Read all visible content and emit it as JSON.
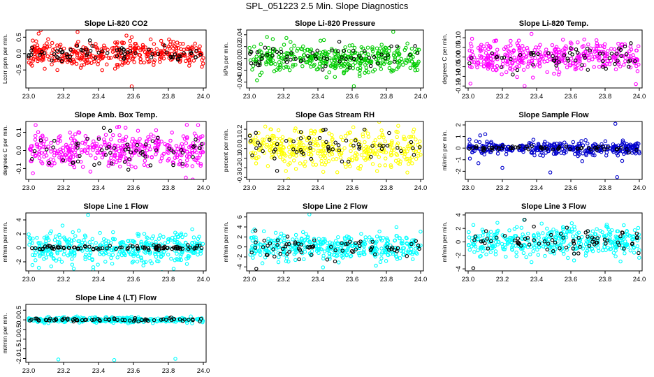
{
  "figure_title": "SPL_051223  2.5 Min. Slope Diagnostics",
  "chart_data": [
    {
      "type": "scatter",
      "title": "Slope Li-820 CO2",
      "ylabel": "Lcorr ppm per min.",
      "xlim": [
        23.0,
        24.0
      ],
      "ylim": [
        -1.05,
        0.72
      ],
      "xticks": [
        23.0,
        23.2,
        23.4,
        23.6,
        23.8,
        24.0
      ],
      "xtick_labels": [
        "23.0",
        "23.2",
        "23.4",
        "23.6",
        "23.8",
        "24.0"
      ],
      "yticks": [
        -0.5,
        0.0,
        0.5
      ],
      "ytick_labels": [
        "-0.5",
        "0.0",
        "0.5"
      ],
      "series": [
        {
          "name": "primary",
          "color": "#ff0000",
          "spread": 0.2,
          "n": 380,
          "seed": 11,
          "outliers": [
            [
              23.28,
              0.66
            ],
            [
              23.56,
              0.55
            ],
            [
              23.59,
              0.5
            ],
            [
              23.55,
              -0.28
            ],
            [
              23.59,
              -1.0
            ]
          ]
        },
        {
          "name": "reference",
          "color": "#000000",
          "spread": 0.12,
          "n": 70,
          "seed": 12,
          "outliers": []
        }
      ]
    },
    {
      "type": "scatter",
      "title": "Slope Li-820 Pressure",
      "ylabel": "kPa per min.",
      "xlim": [
        23.0,
        24.0
      ],
      "ylim": [
        -0.05,
        0.048
      ],
      "xticks": [
        23.0,
        23.2,
        23.4,
        23.6,
        23.8,
        24.0
      ],
      "xtick_labels": [
        "23.0",
        "23.2",
        "23.4",
        "23.6",
        "23.8",
        "24.0"
      ],
      "yticks": [
        -0.04,
        -0.02,
        0.0,
        0.02,
        0.04
      ],
      "ytick_labels": [
        "-0.04",
        "-0.02",
        "0.00",
        "0.02",
        "0.04"
      ],
      "series": [
        {
          "name": "primary",
          "color": "#00cc00",
          "spread": 0.012,
          "n": 380,
          "seed": 21,
          "outliers": [
            [
              23.84,
              0.045
            ],
            [
              23.45,
              -0.032
            ],
            [
              23.61,
              -0.047
            ]
          ]
        },
        {
          "name": "reference",
          "color": "#000000",
          "spread": 0.008,
          "n": 60,
          "seed": 22,
          "outliers": []
        }
      ]
    },
    {
      "type": "scatter",
      "title": "Slope Li-820 Temp.",
      "ylabel": "degrees C per min.",
      "xlim": [
        23.0,
        24.0
      ],
      "ylim": [
        -0.16,
        0.14
      ],
      "xticks": [
        23.0,
        23.2,
        23.4,
        23.6,
        23.8,
        24.0
      ],
      "xtick_labels": [
        "23.0",
        "23.2",
        "23.4",
        "23.6",
        "23.8",
        "24.0"
      ],
      "yticks": [
        -0.15,
        -0.1,
        -0.05,
        0.0,
        0.05,
        0.1
      ],
      "ytick_labels": [
        "-0.15",
        "-0.10",
        "-0.05",
        "0.00",
        "0.05",
        "0.10"
      ],
      "series": [
        {
          "name": "primary",
          "color": "#ff00ff",
          "spread": 0.04,
          "n": 380,
          "seed": 31,
          "outliers": [
            [
              23.33,
              -0.15
            ],
            [
              23.98,
              -0.14
            ],
            [
              23.37,
              0.12
            ]
          ]
        },
        {
          "name": "reference",
          "color": "#000000",
          "spread": 0.035,
          "n": 60,
          "seed": 32,
          "outliers": []
        }
      ]
    },
    {
      "type": "scatter",
      "title": "Slope Amb. Box Temp.",
      "ylabel": "degrees C per min.",
      "xlim": [
        23.0,
        24.0
      ],
      "ylim": [
        -0.16,
        0.16
      ],
      "xticks": [
        23.0,
        23.2,
        23.4,
        23.6,
        23.8,
        24.0
      ],
      "xtick_labels": [
        "23.0",
        "23.2",
        "23.4",
        "23.6",
        "23.8",
        "24.0"
      ],
      "yticks": [
        -0.1,
        0.0,
        0.1
      ],
      "ytick_labels": [
        "-0.1",
        "0.0",
        "0.1"
      ],
      "series": [
        {
          "name": "primary",
          "color": "#ff00ff",
          "spread": 0.05,
          "n": 380,
          "seed": 41,
          "outliers": [
            [
              23.04,
              0.14
            ],
            [
              23.97,
              0.14
            ],
            [
              23.9,
              -0.15
            ]
          ]
        },
        {
          "name": "reference",
          "color": "#000000",
          "spread": 0.045,
          "n": 60,
          "seed": 42,
          "outliers": []
        }
      ]
    },
    {
      "type": "scatter",
      "title": "Slope Gas Stream RH",
      "ylabel": "percent per min.",
      "xlim": [
        23.0,
        24.0
      ],
      "ylim": [
        -0.32,
        0.28
      ],
      "xticks": [
        23.0,
        23.2,
        23.4,
        23.6,
        23.8,
        24.0
      ],
      "xtick_labels": [
        "23.0",
        "23.2",
        "23.4",
        "23.6",
        "23.8",
        "24.0"
      ],
      "yticks": [
        -0.3,
        -0.2,
        -0.1,
        0.0,
        0.1,
        0.2
      ],
      "ytick_labels": [
        "-0.3",
        "-0.2",
        "-0.1",
        "0.0",
        "0.1",
        "0.2"
      ],
      "series": [
        {
          "name": "primary",
          "color": "#ffff00",
          "spread": 0.1,
          "n": 380,
          "seed": 51,
          "outliers": []
        },
        {
          "name": "reference",
          "color": "#000000",
          "spread": 0.09,
          "n": 60,
          "seed": 52,
          "outliers": []
        }
      ]
    },
    {
      "type": "scatter",
      "title": "Slope Sample Flow",
      "ylabel": "ml/min per min.",
      "xlim": [
        23.0,
        24.0
      ],
      "ylim": [
        -2.7,
        2.3
      ],
      "xticks": [
        23.0,
        23.2,
        23.4,
        23.6,
        23.8,
        24.0
      ],
      "xtick_labels": [
        "23.0",
        "23.2",
        "23.4",
        "23.6",
        "23.8",
        "24.0"
      ],
      "yticks": [
        -2,
        -1,
        0,
        1,
        2
      ],
      "ytick_labels": [
        "-2",
        "-1",
        "0",
        "1",
        "2"
      ],
      "series": [
        {
          "name": "primary",
          "color": "#0000cc",
          "spread": 0.28,
          "n": 380,
          "seed": 61,
          "outliers": [
            [
              23.07,
              1.1
            ],
            [
              23.1,
              1.2
            ],
            [
              23.01,
              -0.9
            ],
            [
              23.06,
              -1.3
            ],
            [
              23.2,
              -1.7
            ],
            [
              23.48,
              -2.1
            ],
            [
              23.86,
              2.1
            ],
            [
              23.87,
              -2.5
            ],
            [
              23.9,
              -1.1
            ]
          ]
        },
        {
          "name": "reference",
          "color": "#000000",
          "spread": 0.12,
          "n": 60,
          "seed": 62,
          "outliers": []
        }
      ]
    },
    {
      "type": "scatter",
      "title": "Slope Line 1 Flow",
      "ylabel": "ml/min per min.",
      "xlim": [
        23.0,
        24.0
      ],
      "ylim": [
        -3.3,
        5.0
      ],
      "xticks": [
        23.0,
        23.2,
        23.4,
        23.6,
        23.8,
        24.0
      ],
      "xtick_labels": [
        "23.0",
        "23.2",
        "23.4",
        "23.6",
        "23.8",
        "24.0"
      ],
      "yticks": [
        -2,
        0,
        2,
        4
      ],
      "ytick_labels": [
        "-2",
        "0",
        "2",
        "4"
      ],
      "series": [
        {
          "name": "primary",
          "color": "#00ffff",
          "spread": 1.1,
          "n": 400,
          "seed": 71,
          "outliers": [
            [
              23.34,
              4.7
            ],
            [
              23.83,
              -3.0
            ],
            [
              23.37,
              -3.2
            ]
          ]
        },
        {
          "name": "reference",
          "color": "#000000",
          "spread": 0.15,
          "n": 90,
          "seed": 72,
          "outliers": []
        }
      ]
    },
    {
      "type": "scatter",
      "title": "Slope Line 2 Flow",
      "ylabel": "ml/min per min.",
      "xlim": [
        23.0,
        24.0
      ],
      "ylim": [
        -4.8,
        6.8
      ],
      "xticks": [
        23.0,
        23.2,
        23.4,
        23.6,
        23.8,
        24.0
      ],
      "xtick_labels": [
        "23.0",
        "23.2",
        "23.4",
        "23.6",
        "23.8",
        "24.0"
      ],
      "yticks": [
        -4,
        -2,
        0,
        2,
        4,
        6
      ],
      "ytick_labels": [
        "-4",
        "-2",
        "0",
        "2",
        "4",
        "6"
      ],
      "series": [
        {
          "name": "primary",
          "color": "#00ffff",
          "spread": 1.3,
          "n": 400,
          "seed": 81,
          "outliers": [
            [
              23.35,
              6.5
            ],
            [
              23.43,
              -4.1
            ]
          ]
        },
        {
          "name": "reference",
          "color": "#000000",
          "spread": 1.0,
          "n": 70,
          "seed": 82,
          "outliers": [
            [
              23.04,
              -4.4
            ],
            [
              23.5,
              -2.9
            ]
          ]
        }
      ]
    },
    {
      "type": "scatter",
      "title": "Slope Line 3 Flow",
      "ylabel": "ml/min per min.",
      "xlim": [
        23.0,
        24.0
      ],
      "ylim": [
        -4.3,
        4.3
      ],
      "xticks": [
        23.0,
        23.2,
        23.4,
        23.6,
        23.8,
        24.0
      ],
      "xtick_labels": [
        "23.0",
        "23.2",
        "23.4",
        "23.6",
        "23.8",
        "24.0"
      ],
      "yticks": [
        -4,
        -2,
        0,
        2,
        4
      ],
      "ytick_labels": [
        "-4",
        "-2",
        "0",
        "2",
        "4"
      ],
      "series": [
        {
          "name": "primary",
          "color": "#00ffff",
          "spread": 1.1,
          "n": 400,
          "seed": 91,
          "outliers": [
            [
              23.37,
              -3.0
            ],
            [
              23.89,
              -2.9
            ],
            [
              23.97,
              -1.6
            ]
          ]
        },
        {
          "name": "reference",
          "color": "#000000",
          "spread": 0.9,
          "n": 70,
          "seed": 92,
          "outliers": [
            [
              23.03,
              -3.9
            ],
            [
              23.33,
              3.3
            ]
          ]
        }
      ]
    },
    {
      "type": "scatter",
      "title": "Slope Line 4 (LT) Flow",
      "ylabel": "ml/min per min.",
      "xlim": [
        23.0,
        24.0
      ],
      "ylim": [
        -2.2,
        0.8
      ],
      "xticks": [
        23.0,
        23.2,
        23.4,
        23.6,
        23.8,
        24.0
      ],
      "xtick_labels": [
        "23.0",
        "23.2",
        "23.4",
        "23.6",
        "23.8",
        "24.0"
      ],
      "yticks": [
        -2.0,
        -1.5,
        -1.0,
        -0.5,
        0.0,
        0.5
      ],
      "ytick_labels": [
        "-2.0",
        "-1.5",
        "-1.0",
        "-0.5",
        "0.0",
        "0.5"
      ],
      "series": [
        {
          "name": "primary",
          "color": "#00ffff",
          "spread": 0.07,
          "n": 300,
          "seed": 101,
          "outliers": [
            [
              23.17,
              -2.05
            ],
            [
              23.49,
              -2.08
            ],
            [
              23.84,
              -2.02
            ],
            [
              23.21,
              -0.1
            ],
            [
              23.6,
              -0.12
            ]
          ]
        },
        {
          "name": "reference",
          "color": "#000000",
          "spread": 0.04,
          "n": 70,
          "seed": 102,
          "outliers": []
        }
      ]
    }
  ]
}
